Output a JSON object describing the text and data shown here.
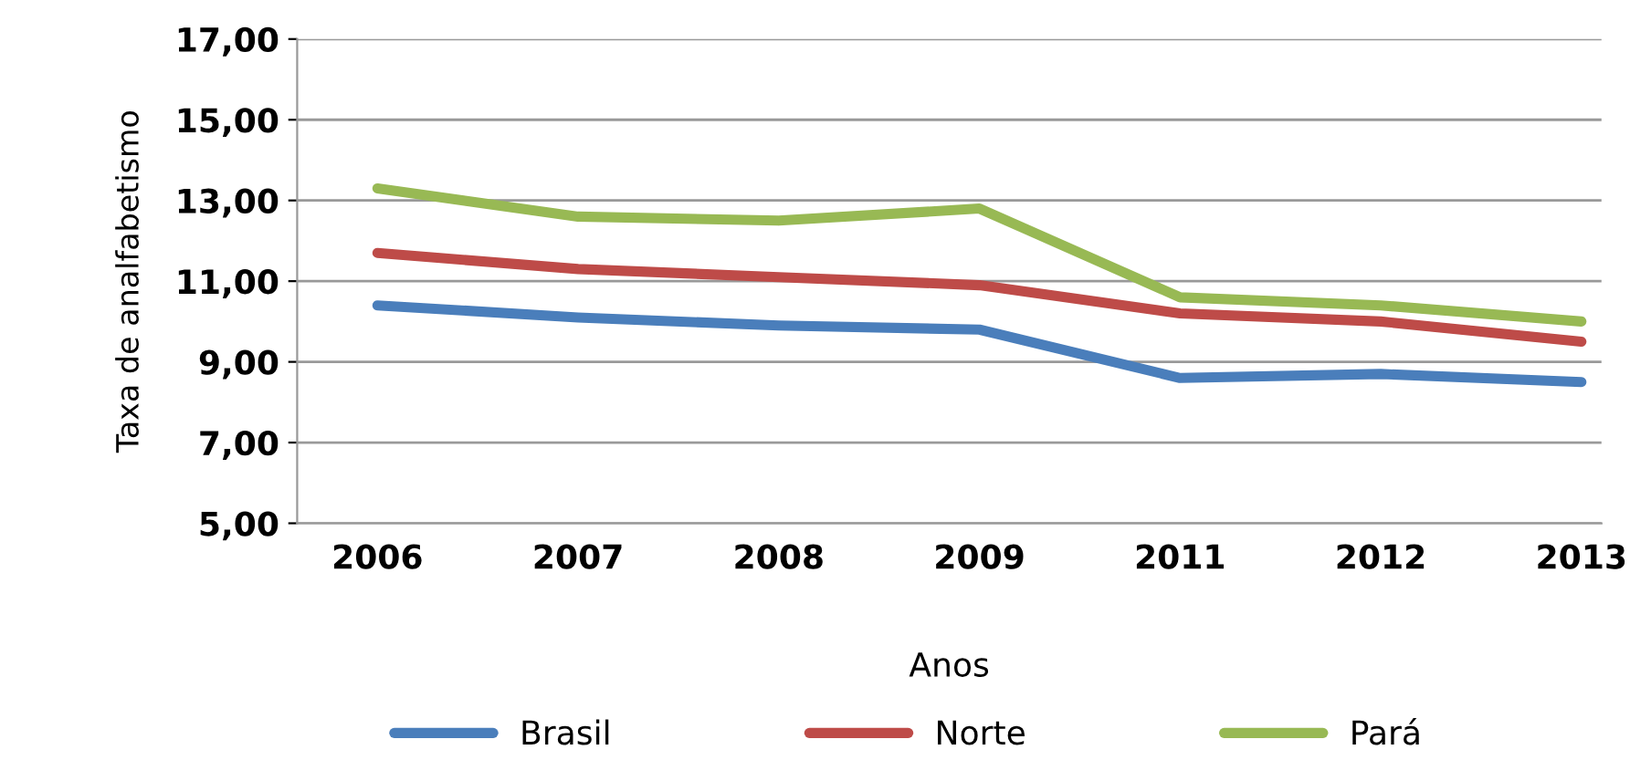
{
  "chart_data": {
    "type": "line",
    "xlabel": "Anos",
    "ylabel": "Taxa de analfabetismo",
    "categories": [
      "2006",
      "2007",
      "2008",
      "2009",
      "2011",
      "2012",
      "2013"
    ],
    "series": [
      {
        "name": "Brasil",
        "color": "#4a7ebb",
        "values": [
          10.4,
          10.1,
          9.9,
          9.8,
          8.6,
          8.7,
          8.5
        ]
      },
      {
        "name": "Norte",
        "color": "#be4b48",
        "values": [
          11.7,
          11.3,
          11.1,
          10.9,
          10.2,
          10.0,
          9.5
        ]
      },
      {
        "name": "Pará",
        "color": "#98b954",
        "values": [
          13.3,
          12.6,
          12.5,
          12.8,
          10.6,
          10.4,
          10.0
        ]
      }
    ],
    "ylim": [
      5,
      17
    ],
    "yticks": [
      {
        "value": 5,
        "label": "5,00"
      },
      {
        "value": 7,
        "label": "7,00"
      },
      {
        "value": 9,
        "label": "9,00"
      },
      {
        "value": 11,
        "label": "11,00"
      },
      {
        "value": 13,
        "label": "13,00"
      },
      {
        "value": 15,
        "label": "15,00"
      },
      {
        "value": 17,
        "label": "17,00"
      }
    ],
    "grid": "y",
    "legend": "bottom",
    "marker": "none",
    "line_style": "solid"
  }
}
